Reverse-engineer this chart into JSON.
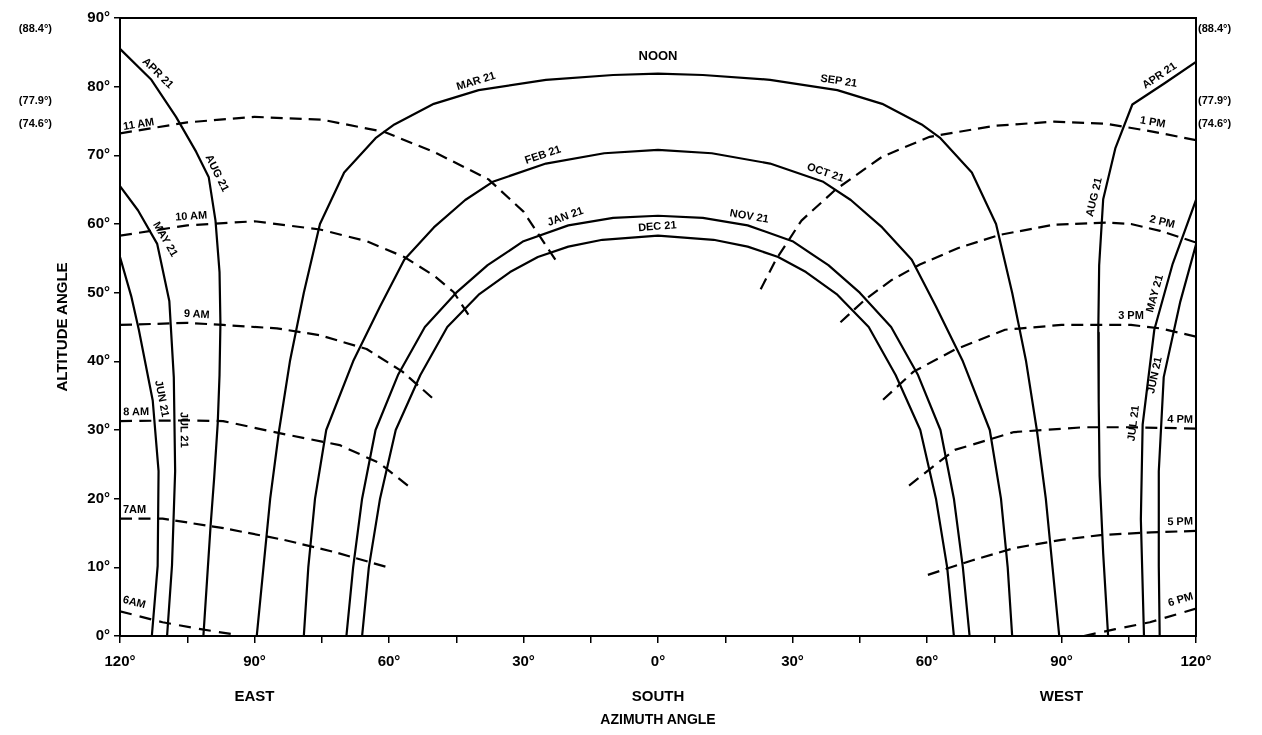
{
  "chart_data": {
    "type": "line",
    "xlabel": "AZIMUTH ANGLE",
    "ylabel": "ALTITUDE ANGLE",
    "marker": "none",
    "xlim": [
      -120,
      120
    ],
    "ylim": [
      0,
      90
    ],
    "y2lim": [
      0,
      90
    ],
    "y3lim": [
      0,
      90
    ],
    "xticks": [
      {
        "value": -120,
        "label": "120°"
      },
      {
        "value": -105,
        "label": null
      },
      {
        "value": -90,
        "label": "90°\nEAST"
      },
      {
        "value": -75,
        "label": null
      },
      {
        "value": -60,
        "label": "60°"
      },
      {
        "value": -45,
        "label": null
      },
      {
        "value": -30,
        "label": "30°"
      },
      {
        "value": -15,
        "label": null
      },
      {
        "value": 0,
        "label": "0°\nSOUTH"
      },
      {
        "value": 15,
        "label": null
      },
      {
        "value": 30,
        "label": "30°"
      },
      {
        "value": 45,
        "label": null
      },
      {
        "value": 60,
        "label": "60°"
      },
      {
        "value": 75,
        "label": null
      },
      {
        "value": 90,
        "label": "90°\nWEST"
      },
      {
        "value": 105,
        "label": null
      },
      {
        "value": 120,
        "label": "120°"
      }
    ],
    "yticks": [
      {
        "value": 0,
        "label": "0°"
      },
      {
        "value": 10,
        "label": "10°"
      },
      {
        "value": 20,
        "label": "20°"
      },
      {
        "value": 30,
        "label": "30°"
      },
      {
        "value": 40,
        "label": "40°"
      },
      {
        "value": 50,
        "label": "50°"
      },
      {
        "value": 60,
        "label": "60°"
      },
      {
        "value": 70,
        "label": "70°"
      },
      {
        "value": 80,
        "label": "80°"
      },
      {
        "value": 90,
        "label": "90°"
      }
    ],
    "y2ticks": [
      {
        "value": 88.4,
        "label": "(88.4°)"
      },
      {
        "value": 77.9,
        "label": "(77.9°)"
      },
      {
        "value": 74.6,
        "label": "(74.6°)"
      }
    ],
    "y3ticks": [
      {
        "value": 88.4,
        "label": "(88.4°)"
      },
      {
        "value": 77.9,
        "label": "(77.9°)"
      },
      {
        "value": 74.6,
        "label": "(74.6°)"
      }
    ],
    "series": [
      {
        "color": "#000000",
        "line_style": "solid",
        "x": [
          -66,
          -64.5,
          -62,
          -58.5,
          -53,
          -47,
          -40,
          -33,
          -26.8,
          -20,
          -12.4,
          0,
          12.4,
          20,
          26.8,
          33,
          40,
          47,
          53,
          58.5,
          62,
          64.5,
          66
        ],
        "values": [
          0,
          10,
          20,
          30,
          38,
          45,
          49.7,
          53,
          55.2,
          56.7,
          57.7,
          58.3,
          57.7,
          56.7,
          55.2,
          53,
          49.7,
          45,
          38,
          30,
          20,
          10,
          0
        ]
      },
      {
        "color": "#000000",
        "line_style": "solid",
        "x": [
          -69.5,
          -68,
          -66,
          -63,
          -58,
          -52,
          -45,
          -38,
          -30,
          -20,
          -10,
          0,
          10,
          20,
          30,
          38,
          45,
          52,
          58,
          63,
          66,
          68,
          69.5
        ],
        "values": [
          0,
          10,
          20,
          30,
          38,
          45,
          50,
          54,
          57.5,
          59.8,
          60.9,
          61.2,
          60.9,
          59.8,
          57.5,
          54,
          50,
          45,
          38,
          30,
          20,
          10,
          0
        ]
      },
      {
        "color": "#000000",
        "line_style": "solid",
        "x": [
          -79,
          -78,
          -76.5,
          -74,
          -68,
          -62,
          -56.6,
          -50,
          -43,
          -36.7,
          -25,
          -12,
          0,
          12,
          25,
          36.7,
          43,
          50,
          56.6,
          62,
          68,
          74,
          76.5,
          78,
          79
        ],
        "values": [
          0,
          10,
          20,
          30,
          40,
          48,
          54.8,
          59.5,
          63.5,
          66.2,
          68.8,
          70.3,
          70.8,
          70.3,
          68.8,
          66.2,
          63.5,
          59.5,
          54.8,
          48,
          40,
          30,
          20,
          10,
          0
        ]
      },
      {
        "color": "#000000",
        "line_style": "solid",
        "x": [
          -89.5,
          -88,
          -86.5,
          -84.5,
          -82.1,
          -79,
          -75.4,
          -70,
          -63,
          -58.8,
          -50,
          -40,
          -25,
          -10,
          0,
          10,
          25,
          40,
          50,
          58.8,
          63,
          70,
          75.4,
          79,
          82.1,
          84.5,
          86.5,
          88,
          89.5
        ],
        "values": [
          0,
          10,
          20,
          30,
          40,
          50,
          60,
          67.5,
          72.5,
          74.5,
          77.5,
          79.5,
          81,
          81.7,
          81.9,
          81.7,
          81,
          79.5,
          77.5,
          74.5,
          72.5,
          67.5,
          60,
          50,
          40,
          30,
          20,
          10,
          0
        ]
      },
      {
        "color": "#000000",
        "line_style": "solid",
        "x": [
          -120,
          -113,
          -107.5,
          -103,
          -100.2,
          -98.7,
          -97.8,
          -97.6,
          -97.8,
          -98.2,
          -99,
          -99.8,
          -100.6,
          -101.4
        ],
        "values": [
          85.5,
          81,
          75.6,
          70.5,
          66.8,
          60.5,
          53,
          45.5,
          38,
          31,
          23,
          16,
          8,
          0
        ]
      },
      {
        "color": "#000000",
        "line_style": "solid",
        "x": [
          120,
          113,
          105.8,
          102,
          99.3,
          98.4,
          98.2,
          98.3,
          98.5,
          99.3,
          100.4
        ],
        "values": [
          83.6,
          80.5,
          77.4,
          71,
          63.6,
          54,
          44.2,
          34,
          23.3,
          12,
          0
        ]
      },
      {
        "color": "#000000",
        "line_style": "solid",
        "x": [
          -120,
          -116,
          -111.7,
          -109,
          -108,
          -107.7,
          -108.4,
          -109.5
        ],
        "values": [
          65.5,
          62,
          57.1,
          48.8,
          37.7,
          24,
          10.3,
          0
        ]
      },
      {
        "color": "#000000",
        "line_style": "solid",
        "x": [
          120,
          117.5,
          114.8,
          110.7,
          108.1,
          107.7,
          108.4
        ],
        "values": [
          63.5,
          59,
          54.2,
          44.6,
          30.8,
          17,
          0
        ]
      },
      {
        "color": "#000000",
        "line_style": "solid",
        "x": [
          -120,
          -117.5,
          -115.8,
          -112.7,
          -111.4,
          -111.6,
          -112.9
        ],
        "values": [
          55.2,
          49.5,
          44.6,
          34.3,
          24,
          10.2,
          0
        ]
      },
      {
        "color": "#000000",
        "line_style": "solid",
        "x": [
          120,
          116.5,
          112.8,
          111.7,
          111.7,
          111.9
        ],
        "values": [
          57,
          48.7,
          37.7,
          24,
          10.2,
          0
        ]
      },
      {
        "color": "#000000",
        "line_style": "dashed",
        "x": [
          -120,
          -105,
          -90,
          -75,
          -61,
          -50,
          -37.8,
          -30,
          -22.9
        ],
        "values": [
          73.2,
          74.8,
          75.6,
          75.2,
          73.4,
          70.5,
          66.5,
          61.8,
          54.8
        ]
      },
      {
        "color": "#000000",
        "line_style": "dashed",
        "x": [
          22.9,
          26.3,
          32,
          39.6,
          50,
          60.6,
          75,
          88.3,
          100,
          110,
          120
        ],
        "values": [
          50.5,
          54.8,
          60.5,
          65,
          69.8,
          72.7,
          74.3,
          74.9,
          74.6,
          73.5,
          72.2
        ]
      },
      {
        "color": "#000000",
        "line_style": "dashed",
        "x": [
          -120,
          -105,
          -90,
          -75.4,
          -65,
          -56.6,
          -50,
          -45.6,
          -42.3
        ],
        "values": [
          58.3,
          59.8,
          60.4,
          59.2,
          57.5,
          55.2,
          52.5,
          50.1,
          46.8
        ]
      },
      {
        "color": "#000000",
        "line_style": "dashed",
        "x": [
          40.7,
          46.2,
          52,
          58.4,
          67,
          76.1,
          88.3,
          100,
          105.5,
          112,
          120
        ],
        "values": [
          45.7,
          49,
          51.8,
          54.1,
          56.5,
          58.4,
          59.9,
          60.2,
          60,
          59,
          57.3
        ]
      },
      {
        "color": "#000000",
        "line_style": "dashed",
        "x": [
          -120,
          -105,
          -97,
          -85,
          -75.4,
          -65,
          -57,
          -50.4
        ],
        "values": [
          45.3,
          45.6,
          45.3,
          44.8,
          43.8,
          41.8,
          38.5,
          34.7
        ]
      },
      {
        "color": "#000000",
        "line_style": "dashed",
        "x": [
          50.2,
          57,
          66.2,
          77.4,
          90,
          105.5,
          112,
          120
        ],
        "values": [
          34.4,
          38.5,
          41.7,
          44.6,
          45.3,
          45.3,
          44.8,
          43.6
        ]
      },
      {
        "color": "#000000",
        "line_style": "dashed",
        "x": [
          -120,
          -105,
          -97,
          -83.4,
          -71,
          -62.2,
          -55.8
        ],
        "values": [
          31.3,
          31.4,
          31.3,
          29.4,
          27.8,
          25.2,
          21.9
        ]
      },
      {
        "color": "#000000",
        "line_style": "dashed",
        "x": [
          56,
          61,
          66.2,
          79.4,
          95,
          105.5,
          120
        ],
        "values": [
          21.9,
          24.5,
          27.1,
          29.7,
          30.4,
          30.4,
          30.2
        ]
      },
      {
        "color": "#000000",
        "line_style": "dashed",
        "x": [
          -120,
          -110.5,
          -96.9,
          -83.4,
          -72,
          -60.8
        ],
        "values": [
          17.1,
          17.1,
          15.7,
          14,
          12.2,
          10.1
        ]
      },
      {
        "color": "#000000",
        "line_style": "dashed",
        "x": [
          60.2,
          70,
          79.4,
          90,
          98.7,
          110,
          120
        ],
        "values": [
          8.9,
          11,
          12.8,
          14,
          14.7,
          15.1,
          15.3
        ]
      },
      {
        "color": "#000000",
        "line_style": "dashed",
        "x": [
          -120,
          -110.5,
          -102,
          -95.3
        ],
        "values": [
          3.6,
          2,
          1,
          0.3
        ]
      },
      {
        "color": "#000000",
        "line_style": "dashed",
        "x": [
          95,
          102,
          109.7,
          120
        ],
        "values": [
          0,
          1,
          2,
          4
        ]
      }
    ],
    "annotations": [
      "NOON",
      {
        "text": "MAR 21",
        "x": -40,
        "y": 79.5
      },
      {
        "text": "SEP 21",
        "x": 40,
        "y": 79.5
      },
      {
        "text": "FEB 21",
        "x": -25,
        "y": 68.8
      },
      {
        "text": "OCT 21",
        "x": 36.7,
        "y": 66.2
      },
      {
        "text": "JAN 21",
        "x": -20,
        "y": 59.8
      },
      {
        "text": "NOV 21",
        "x": 20,
        "y": 59.8
      },
      {
        "text": "DEC 21",
        "x": 0,
        "y": 58.3
      },
      {
        "text": "APR 21",
        "x": -113,
        "y": 81
      },
      {
        "text": "AUG 21",
        "x": -100.2,
        "y": 66.8
      },
      {
        "text": "MAY 21",
        "x": -111.7,
        "y": 57.1
      },
      {
        "text": "JUL 21",
        "x": -107.8,
        "y": 30
      },
      {
        "text": "JUN 21",
        "x": -112.7,
        "y": 34.3
      },
      {
        "text": "APR 21",
        "x": 113,
        "y": 80.5
      },
      {
        "text": "AUG 21",
        "x": 99.3,
        "y": 63.6
      },
      {
        "text": "MAY 21",
        "x": 112.8,
        "y": 49.5
      },
      {
        "text": "JUL 21",
        "x": 108.1,
        "y": 30.8
      },
      {
        "text": "JUN 21",
        "x": 112.8,
        "y": 37.7
      },
      {
        "text": "11 AM",
        "x": -120,
        "y": 73.2
      },
      {
        "text": "10 AM",
        "x": -104,
        "y": 59.8
      },
      {
        "text": "9 AM",
        "x": -103,
        "y": 45.5
      },
      {
        "text": "8 AM",
        "x": -120,
        "y": 31.3
      },
      {
        "text": "7AM",
        "x": -120,
        "y": 17.1
      },
      {
        "text": "6AM",
        "x": -120,
        "y": 3.6
      },
      {
        "text": "1 PM",
        "x": 110,
        "y": 73.5
      },
      {
        "text": "2 PM",
        "x": 112,
        "y": 59
      },
      {
        "text": "3 PM",
        "x": 105.5,
        "y": 45.3
      },
      {
        "text": "4 PM",
        "x": 120,
        "y": 30.2
      },
      {
        "text": "5 PM",
        "x": 120,
        "y": 15.3
      },
      {
        "text": "6 PM",
        "x": 120,
        "y": 4
      }
    ]
  }
}
